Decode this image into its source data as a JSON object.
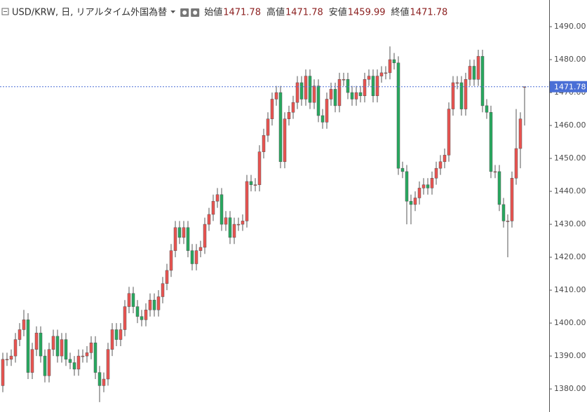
{
  "chart_data": {
    "type": "candlestick",
    "title": "USD/KRW, 日, リアルタイム外国為替",
    "ohlc_labels": [
      "始値",
      "高値",
      "安値",
      "終値"
    ],
    "up_color": "#ea5350",
    "down_color": "#27a95f",
    "wick_color": "#555555",
    "price_line_color": "#4a6fd6",
    "grid": false,
    "ylim": [
      1373,
      1498.1
    ],
    "yticks": [
      {
        "value": 1380,
        "label": "1380.00"
      },
      {
        "value": 1390,
        "label": "1390.00"
      },
      {
        "value": 1400,
        "label": "1400.00"
      },
      {
        "value": 1410,
        "label": "1410.00"
      },
      {
        "value": 1420,
        "label": "1420.00"
      },
      {
        "value": 1430,
        "label": "1430.00"
      },
      {
        "value": 1440,
        "label": "1440.00"
      },
      {
        "value": 1450,
        "label": "1450.00"
      },
      {
        "value": 1460,
        "label": "1460.00"
      },
      {
        "value": 1470,
        "label": "1470.00"
      },
      {
        "value": 1480,
        "label": "1480.00"
      },
      {
        "value": 1490,
        "label": "1490.00"
      }
    ],
    "open": [
      1381,
      1389,
      1389,
      1390,
      1395,
      1398,
      1401,
      1385,
      1392,
      1397,
      1390,
      1384,
      1392,
      1396,
      1390,
      1395,
      1389,
      1388,
      1386,
      1390,
      1390,
      1391,
      1394,
      1385,
      1381,
      1383,
      1392,
      1398,
      1395,
      1398,
      1405,
      1409,
      1405,
      1402,
      1401,
      1404,
      1407,
      1404,
      1408,
      1412,
      1416,
      1422,
      1429,
      1426,
      1429,
      1422,
      1418,
      1422,
      1423,
      1430,
      1433,
      1437,
      1439,
      1430,
      1432,
      1426,
      1430,
      1430,
      1431,
      1443,
      1442,
      1442,
      1452,
      1457,
      1462,
      1468,
      1470,
      1449,
      1462,
      1464,
      1467,
      1473,
      1468,
      1475,
      1467,
      1472,
      1463,
      1461,
      1468,
      1471,
      1466,
      1474,
      1474,
      1470,
      1468,
      1470,
      1469,
      1474,
      1475,
      1469,
      1475,
      1476,
      1476,
      1480,
      1479,
      1447,
      1446,
      1437,
      1436,
      1438,
      1441,
      1442,
      1441,
      1444,
      1447,
      1449,
      1451,
      1465,
      1473,
      1473,
      1465,
      1474,
      1478,
      1474,
      1481,
      1466,
      1464,
      1446,
      1446,
      1436,
      1431,
      1431,
      1444,
      1453,
      1471.78
    ],
    "high": [
      1391,
      1391,
      1392,
      1397,
      1400,
      1404,
      1403,
      1394,
      1399,
      1399,
      1392,
      1394,
      1398,
      1398,
      1397,
      1397,
      1391,
      1390,
      1392,
      1392,
      1393,
      1396,
      1396,
      1387,
      1385,
      1394,
      1400,
      1400,
      1400,
      1407,
      1411,
      1411,
      1407,
      1404,
      1406,
      1409,
      1409,
      1410,
      1414,
      1418,
      1424,
      1431,
      1431,
      1431,
      1431,
      1424,
      1424,
      1425,
      1432,
      1435,
      1439,
      1441,
      1441,
      1434,
      1434,
      1432,
      1432,
      1433,
      1445,
      1445,
      1444,
      1454,
      1459,
      1464,
      1470,
      1472,
      1472,
      1464,
      1466,
      1469,
      1475,
      1475,
      1477,
      1477,
      1474,
      1474,
      1465,
      1470,
      1473,
      1473,
      1476,
      1476,
      1476,
      1472,
      1472,
      1472,
      1476,
      1477,
      1477,
      1477,
      1478,
      1478,
      1484,
      1482,
      1481,
      1449,
      1448,
      1439,
      1440,
      1443,
      1444,
      1444,
      1446,
      1449,
      1451,
      1453,
      1467,
      1475,
      1475,
      1475,
      1476,
      1480,
      1480,
      1483,
      1483,
      1468,
      1466,
      1448,
      1448,
      1438,
      1433,
      1446,
      1465,
      1464,
      1471.78
    ],
    "low": [
      1379,
      1387,
      1387,
      1388,
      1393,
      1396,
      1383,
      1383,
      1390,
      1388,
      1382,
      1382,
      1390,
      1388,
      1388,
      1387,
      1386,
      1384,
      1384,
      1388,
      1388,
      1389,
      1383,
      1376,
      1379,
      1381,
      1390,
      1393,
      1393,
      1396,
      1403,
      1403,
      1400,
      1399,
      1399,
      1402,
      1402,
      1402,
      1406,
      1410,
      1414,
      1420,
      1424,
      1424,
      1420,
      1416,
      1416,
      1420,
      1421,
      1428,
      1431,
      1435,
      1428,
      1428,
      1424,
      1424,
      1428,
      1428,
      1429,
      1440,
      1440,
      1440,
      1450,
      1455,
      1460,
      1466,
      1447,
      1447,
      1460,
      1462,
      1465,
      1466,
      1466,
      1465,
      1465,
      1461,
      1459,
      1459,
      1466,
      1464,
      1464,
      1472,
      1468,
      1466,
      1466,
      1467,
      1467,
      1472,
      1467,
      1467,
      1473,
      1474,
      1474,
      1477,
      1445,
      1444,
      1430,
      1430,
      1434,
      1436,
      1439,
      1439,
      1439,
      1442,
      1445,
      1447,
      1449,
      1463,
      1471,
      1463,
      1463,
      1472,
      1472,
      1472,
      1464,
      1462,
      1444,
      1444,
      1434,
      1429,
      1420,
      1429,
      1442,
      1447,
      1459.99
    ],
    "close": [
      1389,
      1389,
      1390,
      1395,
      1398,
      1401,
      1385,
      1392,
      1397,
      1390,
      1384,
      1392,
      1396,
      1390,
      1395,
      1389,
      1388,
      1386,
      1390,
      1390,
      1391,
      1394,
      1385,
      1381,
      1383,
      1392,
      1398,
      1395,
      1398,
      1405,
      1409,
      1405,
      1402,
      1401,
      1404,
      1407,
      1404,
      1408,
      1412,
      1416,
      1422,
      1429,
      1426,
      1429,
      1422,
      1418,
      1422,
      1423,
      1430,
      1433,
      1437,
      1439,
      1430,
      1432,
      1426,
      1430,
      1430,
      1431,
      1443,
      1442,
      1442,
      1452,
      1457,
      1462,
      1468,
      1470,
      1449,
      1462,
      1464,
      1467,
      1473,
      1468,
      1475,
      1467,
      1472,
      1463,
      1461,
      1468,
      1471,
      1466,
      1474,
      1474,
      1470,
      1468,
      1470,
      1469,
      1474,
      1475,
      1469,
      1475,
      1476,
      1476,
      1480,
      1479,
      1447,
      1446,
      1437,
      1436,
      1438,
      1441,
      1442,
      1441,
      1444,
      1447,
      1449,
      1451,
      1465,
      1473,
      1473,
      1465,
      1474,
      1478,
      1474,
      1481,
      1466,
      1464,
      1446,
      1446,
      1436,
      1431,
      1431,
      1444,
      1453,
      1462,
      1471.78
    ]
  }
}
